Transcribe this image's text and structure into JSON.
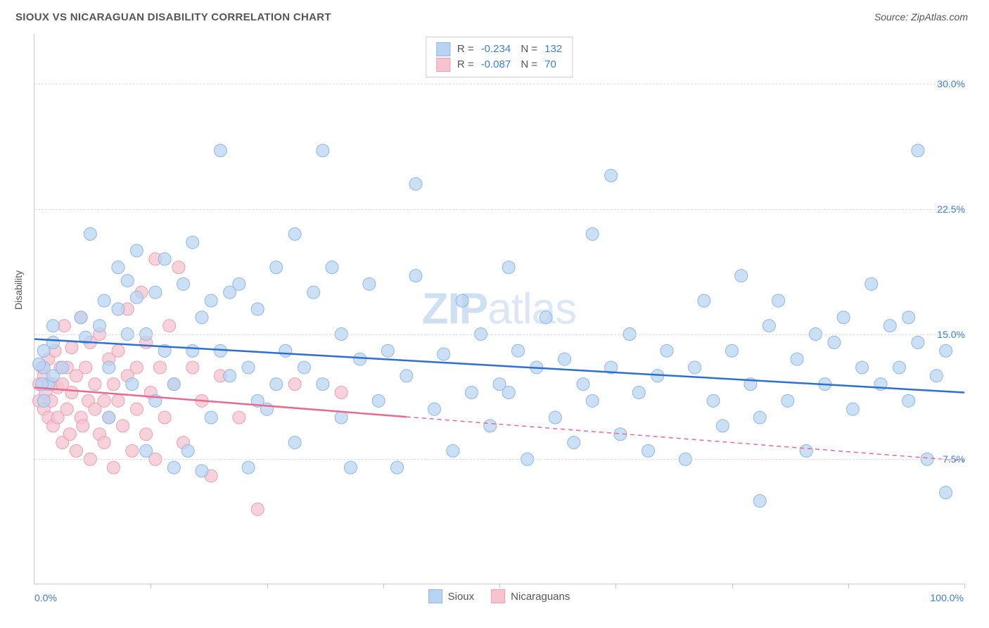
{
  "header": {
    "title": "SIOUX VS NICARAGUAN DISABILITY CORRELATION CHART",
    "source": "Source: ZipAtlas.com"
  },
  "chart": {
    "type": "scatter",
    "y_title": "Disability",
    "watermark": {
      "bold": "ZIP",
      "rest": "atlas"
    },
    "xlim": [
      0,
      100
    ],
    "ylim": [
      0,
      33
    ],
    "x_ticks": [
      12.5,
      25,
      37.5,
      50,
      62.5,
      75,
      87.5,
      100
    ],
    "x_axis_labels": [
      {
        "value": 0,
        "label": "0.0%",
        "align": "left"
      },
      {
        "value": 100,
        "label": "100.0%",
        "align": "right"
      }
    ],
    "y_grid": [
      {
        "value": 7.5,
        "label": "7.5%"
      },
      {
        "value": 15.0,
        "label": "15.0%"
      },
      {
        "value": 22.5,
        "label": "22.5%"
      },
      {
        "value": 30.0,
        "label": "30.0%"
      }
    ],
    "colors": {
      "series1_fill": "#b9d4f2",
      "series1_stroke": "#8db8e6",
      "series1_line": "#2f6fd0",
      "series2_fill": "#f6c3cf",
      "series2_stroke": "#eaa0b2",
      "series2_line": "#e76a8f",
      "grid": "#dcdcdc",
      "axis": "#c8c8c8",
      "tick_label": "#3a7fd7",
      "text": "#555555"
    },
    "marker_radius": 9,
    "marker_opacity": 0.75,
    "line_width": 2.5,
    "legend_top": [
      {
        "swatch": "series1",
        "R": "-0.234",
        "N": "132"
      },
      {
        "swatch": "series2",
        "R": "-0.087",
        "N": "70"
      }
    ],
    "legend_bottom": [
      {
        "swatch": "series1",
        "label": "Sioux"
      },
      {
        "swatch": "series2",
        "label": "Nicaraguans"
      }
    ],
    "trend_lines": [
      {
        "series": "series1",
        "x1": 0,
        "y1": 14.7,
        "x2": 100,
        "y2": 11.5,
        "solid_until": 100
      },
      {
        "series": "series2",
        "x1": 0,
        "y1": 11.8,
        "x2": 100,
        "y2": 7.4,
        "solid_until": 40
      }
    ],
    "series1_points": [
      [
        1,
        13
      ],
      [
        1.5,
        12
      ],
      [
        2,
        14.5
      ],
      [
        2,
        12.5
      ],
      [
        1,
        11
      ],
      [
        0.5,
        13.2
      ],
      [
        1,
        14
      ],
      [
        2,
        15.5
      ],
      [
        3,
        13
      ],
      [
        0.8,
        12
      ],
      [
        5,
        16
      ],
      [
        5.5,
        14.8
      ],
      [
        6,
        21
      ],
      [
        7,
        15.5
      ],
      [
        7.5,
        17
      ],
      [
        8,
        13
      ],
      [
        8,
        10
      ],
      [
        9,
        19
      ],
      [
        9,
        16.5
      ],
      [
        10,
        18.2
      ],
      [
        10,
        15
      ],
      [
        10.5,
        12
      ],
      [
        11,
        17.2
      ],
      [
        11,
        20
      ],
      [
        12,
        15
      ],
      [
        12,
        8
      ],
      [
        13,
        17.5
      ],
      [
        13,
        11
      ],
      [
        14,
        19.5
      ],
      [
        14,
        14
      ],
      [
        15,
        7
      ],
      [
        15,
        12
      ],
      [
        16,
        18
      ],
      [
        16.5,
        8
      ],
      [
        17,
        20.5
      ],
      [
        17,
        14
      ],
      [
        18,
        6.8
      ],
      [
        18,
        16
      ],
      [
        19,
        17
      ],
      [
        19,
        10
      ],
      [
        20,
        26
      ],
      [
        20,
        14
      ],
      [
        21,
        17.5
      ],
      [
        21,
        12.5
      ],
      [
        22,
        18
      ],
      [
        23,
        13
      ],
      [
        23,
        7
      ],
      [
        24,
        16.5
      ],
      [
        24,
        11
      ],
      [
        25,
        10.5
      ],
      [
        26,
        19
      ],
      [
        26,
        12
      ],
      [
        27,
        14
      ],
      [
        28,
        21
      ],
      [
        28,
        8.5
      ],
      [
        29,
        13
      ],
      [
        30,
        17.5
      ],
      [
        31,
        26
      ],
      [
        31,
        12
      ],
      [
        32,
        19
      ],
      [
        33,
        10
      ],
      [
        33,
        15
      ],
      [
        34,
        7
      ],
      [
        35,
        13.5
      ],
      [
        36,
        18
      ],
      [
        37,
        11
      ],
      [
        38,
        14
      ],
      [
        39,
        7
      ],
      [
        40,
        12.5
      ],
      [
        41,
        18.5
      ],
      [
        41,
        24
      ],
      [
        43,
        10.5
      ],
      [
        44,
        13.8
      ],
      [
        45,
        8
      ],
      [
        46,
        17
      ],
      [
        47,
        11.5
      ],
      [
        48,
        15
      ],
      [
        49,
        9.5
      ],
      [
        50,
        12
      ],
      [
        51,
        19
      ],
      [
        51,
        11.5
      ],
      [
        52,
        14
      ],
      [
        53,
        7.5
      ],
      [
        54,
        13
      ],
      [
        55,
        16
      ],
      [
        56,
        10
      ],
      [
        57,
        13.5
      ],
      [
        58,
        8.5
      ],
      [
        59,
        12
      ],
      [
        60,
        21
      ],
      [
        60,
        11
      ],
      [
        62,
        24.5
      ],
      [
        62,
        13
      ],
      [
        63,
        9
      ],
      [
        64,
        15
      ],
      [
        65,
        11.5
      ],
      [
        66,
        8
      ],
      [
        67,
        12.5
      ],
      [
        68,
        14
      ],
      [
        70,
        7.5
      ],
      [
        71,
        13
      ],
      [
        72,
        17
      ],
      [
        73,
        11
      ],
      [
        74,
        9.5
      ],
      [
        75,
        14
      ],
      [
        76,
        18.5
      ],
      [
        77,
        12
      ],
      [
        78,
        10
      ],
      [
        79,
        15.5
      ],
      [
        80,
        17
      ],
      [
        81,
        11
      ],
      [
        82,
        13.5
      ],
      [
        83,
        8
      ],
      [
        84,
        15
      ],
      [
        85,
        12
      ],
      [
        86,
        14.5
      ],
      [
        87,
        16
      ],
      [
        88,
        10.5
      ],
      [
        89,
        13
      ],
      [
        90,
        18
      ],
      [
        91,
        12
      ],
      [
        92,
        15.5
      ],
      [
        93,
        13
      ],
      [
        94,
        11
      ],
      [
        94,
        16
      ],
      [
        95,
        26
      ],
      [
        95,
        14.5
      ],
      [
        96,
        7.5
      ],
      [
        97,
        12.5
      ],
      [
        98,
        14
      ],
      [
        98,
        5.5
      ],
      [
        78,
        5
      ]
    ],
    "series2_points": [
      [
        0.5,
        12
      ],
      [
        0.5,
        11
      ],
      [
        0.8,
        13
      ],
      [
        1,
        10.5
      ],
      [
        1,
        12.5
      ],
      [
        1.2,
        11.5
      ],
      [
        1.5,
        10
      ],
      [
        1.5,
        13.5
      ],
      [
        1.8,
        11
      ],
      [
        2,
        12
      ],
      [
        2,
        9.5
      ],
      [
        2.2,
        14
      ],
      [
        2.5,
        10
      ],
      [
        2.5,
        11.8
      ],
      [
        2.8,
        13
      ],
      [
        3,
        8.5
      ],
      [
        3,
        12
      ],
      [
        3.2,
        15.5
      ],
      [
        3.5,
        10.5
      ],
      [
        3.5,
        13
      ],
      [
        3.8,
        9
      ],
      [
        4,
        11.5
      ],
      [
        4,
        14.2
      ],
      [
        4.5,
        8
      ],
      [
        4.5,
        12.5
      ],
      [
        5,
        10
      ],
      [
        5,
        16
      ],
      [
        5.2,
        9.5
      ],
      [
        5.5,
        13
      ],
      [
        5.8,
        11
      ],
      [
        6,
        7.5
      ],
      [
        6,
        14.5
      ],
      [
        6.5,
        10.5
      ],
      [
        6.5,
        12
      ],
      [
        7,
        9
      ],
      [
        7,
        15
      ],
      [
        7.5,
        11
      ],
      [
        7.5,
        8.5
      ],
      [
        8,
        13.5
      ],
      [
        8,
        10
      ],
      [
        8.5,
        12
      ],
      [
        8.5,
        7
      ],
      [
        9,
        14
      ],
      [
        9,
        11
      ],
      [
        9.5,
        9.5
      ],
      [
        10,
        12.5
      ],
      [
        10,
        16.5
      ],
      [
        10.5,
        8
      ],
      [
        11,
        13
      ],
      [
        11,
        10.5
      ],
      [
        11.5,
        17.5
      ],
      [
        12,
        9
      ],
      [
        12,
        14.5
      ],
      [
        12.5,
        11.5
      ],
      [
        13,
        19.5
      ],
      [
        13,
        7.5
      ],
      [
        13.5,
        13
      ],
      [
        14,
        10
      ],
      [
        14.5,
        15.5
      ],
      [
        15,
        12
      ],
      [
        15.5,
        19
      ],
      [
        16,
        8.5
      ],
      [
        17,
        13
      ],
      [
        18,
        11
      ],
      [
        19,
        6.5
      ],
      [
        20,
        12.5
      ],
      [
        22,
        10
      ],
      [
        24,
        4.5
      ],
      [
        28,
        12
      ],
      [
        33,
        11.5
      ]
    ]
  }
}
